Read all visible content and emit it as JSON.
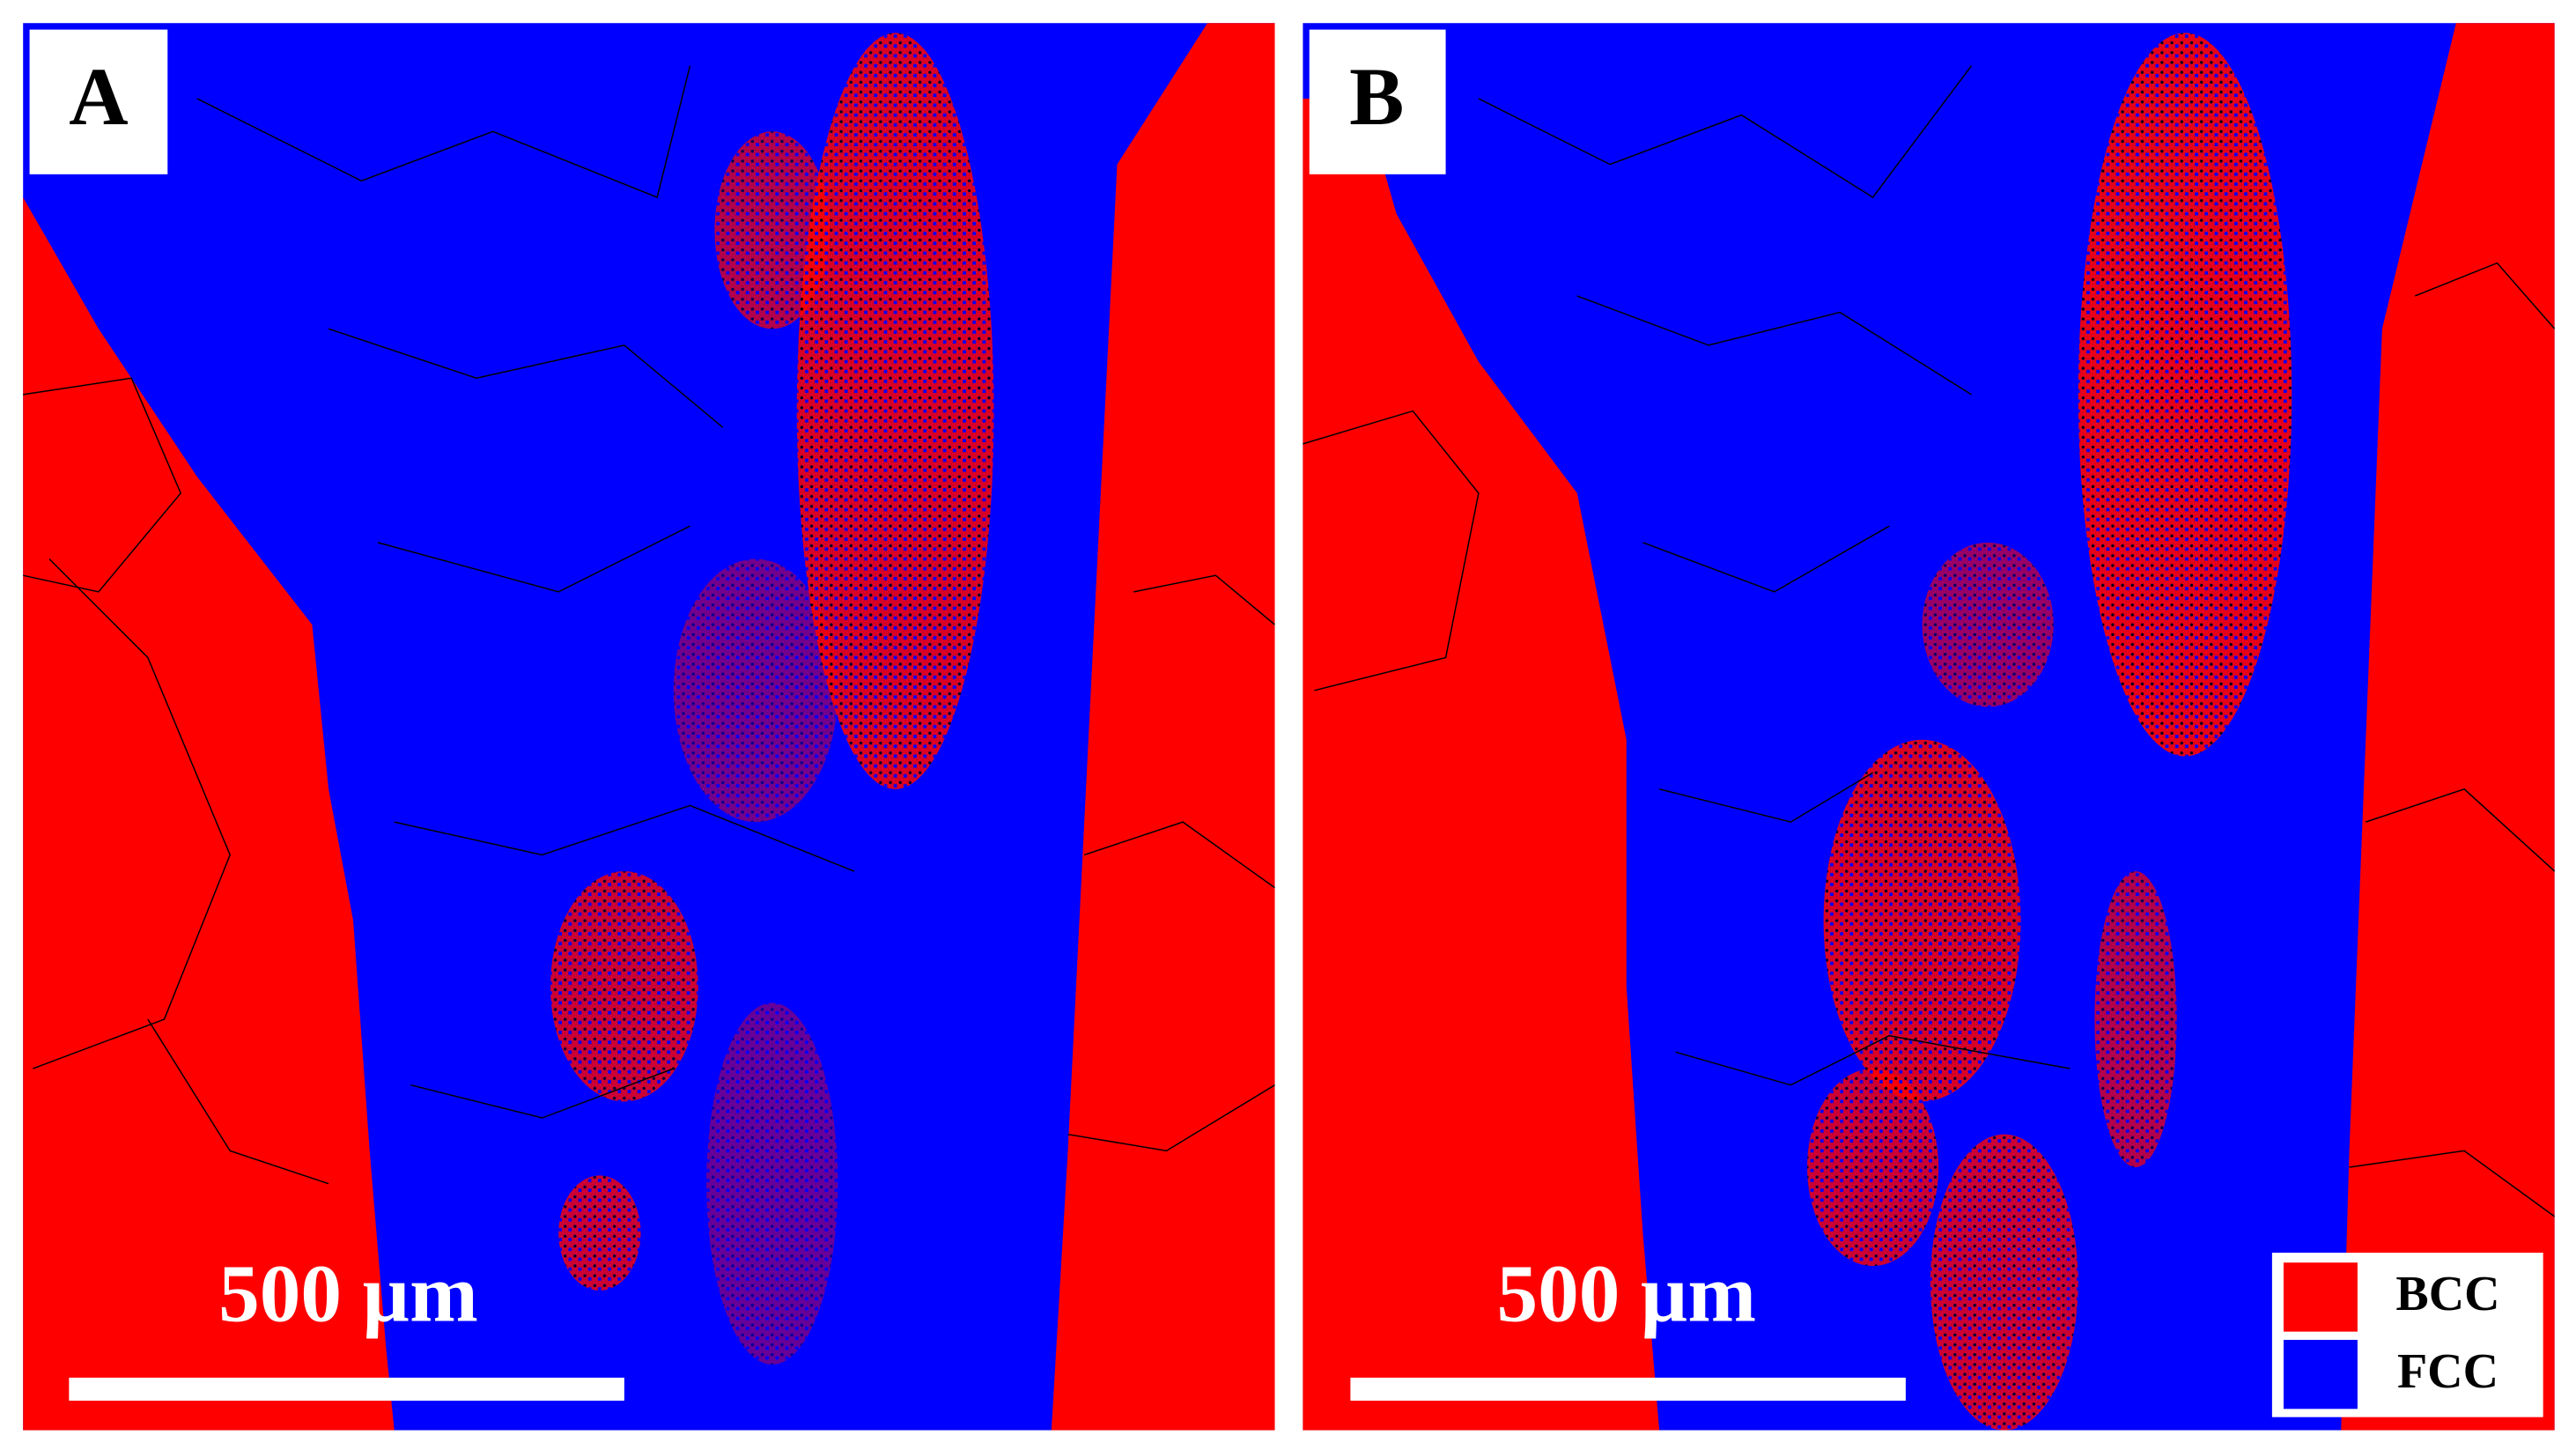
{
  "panels": [
    {
      "label": "A",
      "scale_bar": "500 µm"
    },
    {
      "label": "B",
      "scale_bar": "500 µm"
    }
  ],
  "legend": [
    {
      "label": "BCC"
    },
    {
      "label": "FCC"
    }
  ]
}
